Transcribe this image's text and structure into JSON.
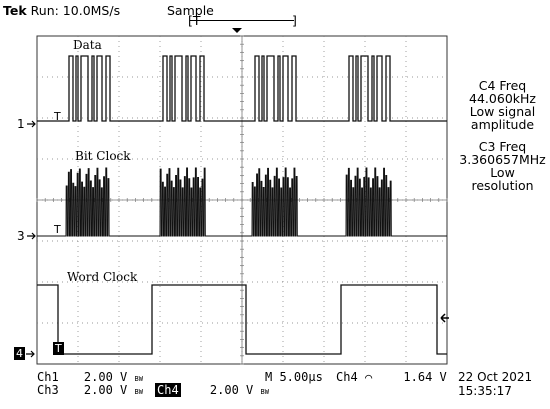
{
  "header": {
    "brand": "Tek",
    "run_state": "Run: 10.0MS/s",
    "acq_mode": "Sample",
    "trigger_window_left": "[T",
    "trigger_window_right": "]"
  },
  "waveforms": {
    "data_label": "Data",
    "bitclock_label": "Bit Clock",
    "wordclock_label": "Word Clock"
  },
  "markers": {
    "ch1": "1",
    "ch3": "3",
    "ch4": "4",
    "trigger": "T"
  },
  "measurements": {
    "c4_title": "C4 Freq",
    "c4_value": "44.060kHz",
    "c4_note_1": "Low signal",
    "c4_note_2": "amplitude",
    "c3_title": "C3 Freq",
    "c3_value": "3.360657MHz",
    "c3_note_1": "Low",
    "c3_note_2": "resolution"
  },
  "footer": {
    "ch1_name": "Ch1",
    "ch1_scale": "2.00 V",
    "ch1_bw": "BW",
    "ch3_name": "Ch3",
    "ch3_scale": "2.00 V",
    "ch3_bw": "BW",
    "ch4_name": "Ch4",
    "ch4_scale": "2.00 V",
    "ch4_bw": "BW",
    "timebase": "M 5.00µs",
    "trig_source": "Ch4",
    "trig_slope": "⌒",
    "trig_level": "1.64 V",
    "date": "22 Oct 2021",
    "time": "15:35:17"
  },
  "colors": {
    "trace": "#111111",
    "grid": "#7a7a7a",
    "background": "#ffffff"
  }
}
